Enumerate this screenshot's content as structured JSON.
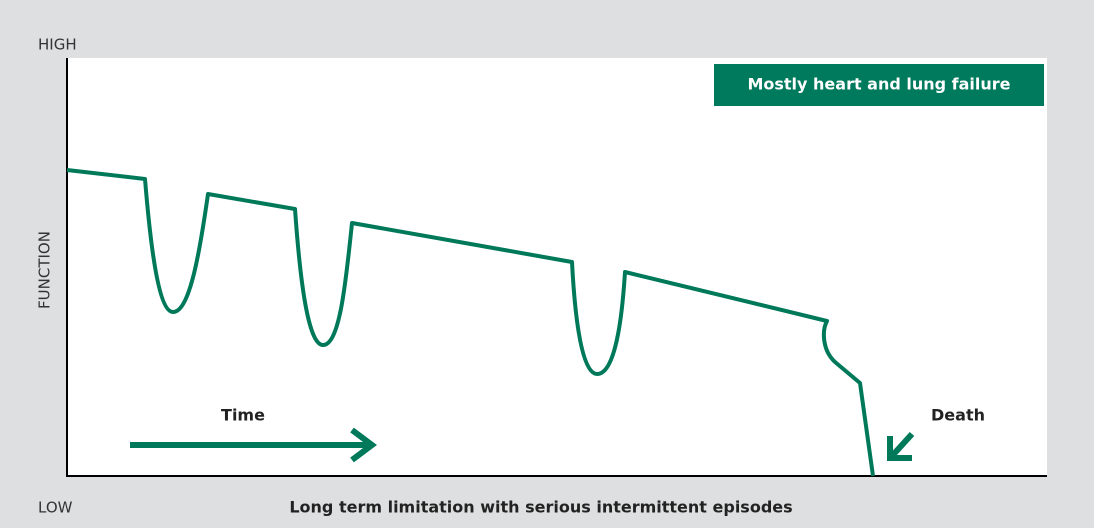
{
  "axis": {
    "high": "HIGH",
    "low": "LOW",
    "label": "FUNCTION"
  },
  "legend": "Mostly heart and lung failure",
  "annotations": {
    "time": "Time",
    "death": "Death"
  },
  "caption": "Long term limitation with serious intermittent episodes"
}
